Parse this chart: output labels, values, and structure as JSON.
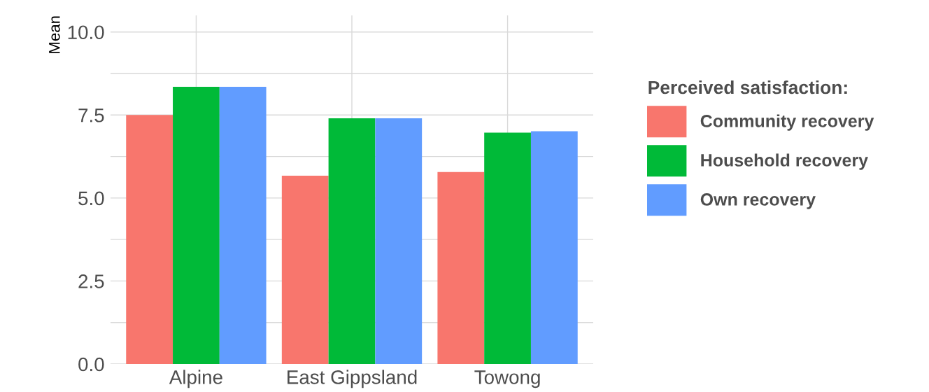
{
  "chart_data": {
    "type": "bar",
    "ylabel": "Mean",
    "legend_title": "Perceived satisfaction:",
    "categories": [
      "Alpine",
      "East Gippsland",
      "Towong"
    ],
    "series": [
      {
        "name": "Community recovery",
        "color": "#f8766d",
        "values": [
          7.5,
          5.67,
          5.78
        ]
      },
      {
        "name": "Household recovery",
        "color": "#00ba38",
        "values": [
          8.35,
          7.4,
          6.97
        ]
      },
      {
        "name": "Own recovery",
        "color": "#619cff",
        "values": [
          8.35,
          7.4,
          7.01
        ]
      }
    ],
    "ylim": [
      0,
      10.5
    ],
    "yticks": [
      {
        "value": 0,
        "label": "0.0"
      },
      {
        "value": 1.25,
        "label": null
      },
      2.5,
      {
        "value": 3.75,
        "label": null
      },
      {
        "value": 5,
        "label": "5.0"
      },
      {
        "value": 6.25,
        "label": null
      },
      7.5,
      {
        "value": 8.75,
        "label": null
      },
      {
        "value": 10,
        "label": "10.0"
      }
    ],
    "grid": true,
    "legend": "right"
  }
}
